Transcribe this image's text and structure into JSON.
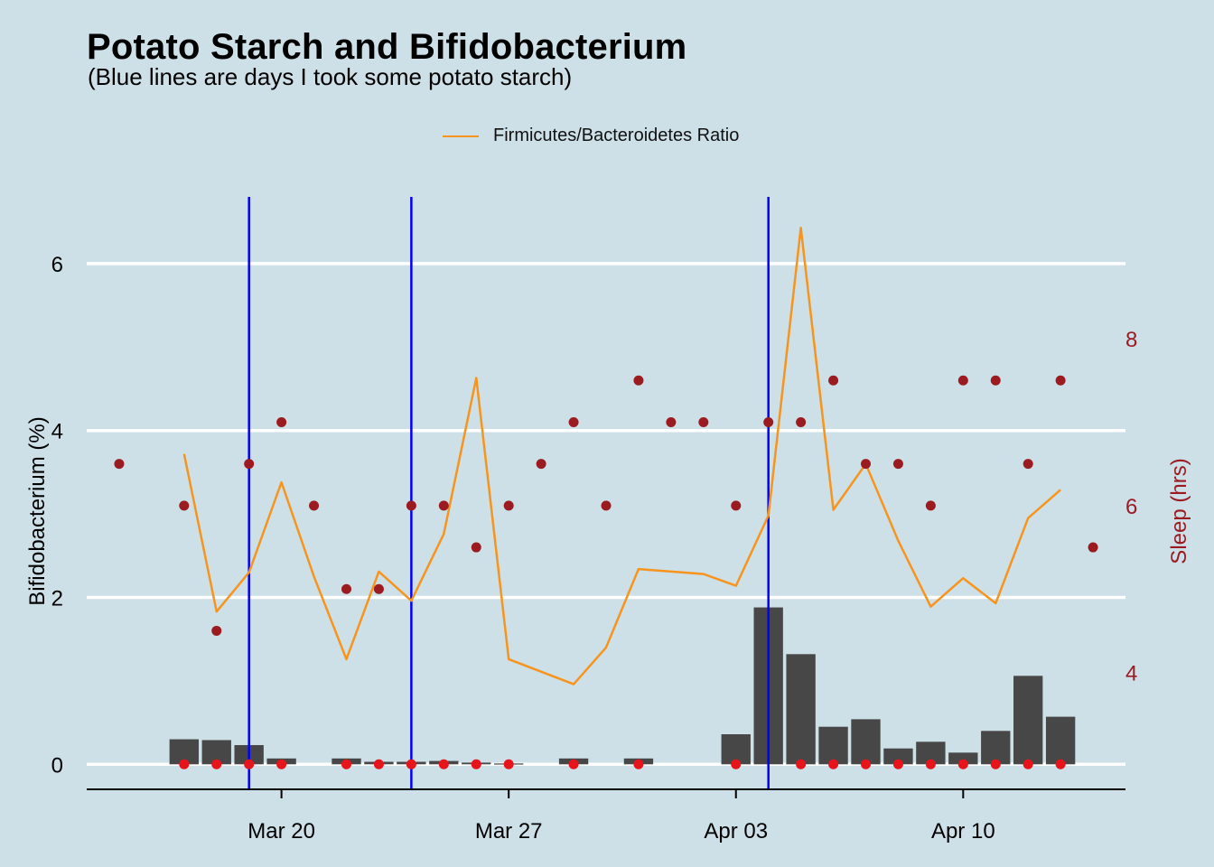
{
  "chart_data": {
    "type": "bar",
    "title": "Potato Starch and Bifidobacterium",
    "subtitle": "(Blue lines are days I took some potato starch)",
    "ylabel": "Bifidobacterium (%)",
    "ylabel_right": "Sleep (hrs)",
    "ylim": [
      -0.3,
      6.8
    ],
    "ylim_right": [
      2.6,
      9.7
    ],
    "y_ticks": [
      0,
      2,
      4,
      6
    ],
    "y_ticks_right": [
      4,
      6,
      8
    ],
    "x_ticks": [
      {
        "date": "2016-03-20",
        "label": "Mar 20"
      },
      {
        "date": "2016-03-27",
        "label": "Mar 27"
      },
      {
        "date": "2016-04-03",
        "label": "Apr 03"
      },
      {
        "date": "2016-04-10",
        "label": "Apr 10"
      }
    ],
    "xlim": [
      "2016-03-14",
      "2016-04-15"
    ],
    "grid": true,
    "legend_position": "top",
    "colors": {
      "bars": "#474747",
      "ratio_line": "#f7941d",
      "starch_lines": "#0000ff",
      "sleep_points": "#9b1b20",
      "zero_points": "#e8141c",
      "gridlines": "#ffffff",
      "right_axis": "#9b1b20"
    },
    "starch_days": [
      "2016-03-19",
      "2016-03-24",
      "2016-04-04"
    ],
    "series": [
      {
        "name": "Bifidobacterium (%)",
        "kind": "bar",
        "points": [
          {
            "date": "2016-03-17",
            "value": 0.3
          },
          {
            "date": "2016-03-18",
            "value": 0.29
          },
          {
            "date": "2016-03-19",
            "value": 0.23
          },
          {
            "date": "2016-03-20",
            "value": 0.07
          },
          {
            "date": "2016-03-22",
            "value": 0.07
          },
          {
            "date": "2016-03-23",
            "value": 0.03
          },
          {
            "date": "2016-03-24",
            "value": 0.03
          },
          {
            "date": "2016-03-25",
            "value": 0.04
          },
          {
            "date": "2016-03-26",
            "value": 0.02
          },
          {
            "date": "2016-03-27",
            "value": 0.01
          },
          {
            "date": "2016-03-29",
            "value": 0.07
          },
          {
            "date": "2016-03-31",
            "value": 0.07
          },
          {
            "date": "2016-04-03",
            "value": 0.36
          },
          {
            "date": "2016-04-04",
            "value": 1.88
          },
          {
            "date": "2016-04-05",
            "value": 1.32
          },
          {
            "date": "2016-04-06",
            "value": 0.45
          },
          {
            "date": "2016-04-07",
            "value": 0.54
          },
          {
            "date": "2016-04-08",
            "value": 0.19
          },
          {
            "date": "2016-04-09",
            "value": 0.27
          },
          {
            "date": "2016-04-10",
            "value": 0.14
          },
          {
            "date": "2016-04-11",
            "value": 0.4
          },
          {
            "date": "2016-04-12",
            "value": 1.06
          },
          {
            "date": "2016-04-13",
            "value": 0.57
          }
        ]
      },
      {
        "name": "Firmicutes/Bacteroidetes Ratio",
        "kind": "line",
        "axis": "left",
        "points": [
          {
            "date": "2016-03-17",
            "value": 3.72
          },
          {
            "date": "2016-03-18",
            "value": 1.83
          },
          {
            "date": "2016-03-19",
            "value": 2.3
          },
          {
            "date": "2016-03-20",
            "value": 3.38
          },
          {
            "date": "2016-03-21",
            "value": 2.25
          },
          {
            "date": "2016-03-22",
            "value": 1.26
          },
          {
            "date": "2016-03-23",
            "value": 2.31
          },
          {
            "date": "2016-03-24",
            "value": 1.96
          },
          {
            "date": "2016-03-25",
            "value": 2.76
          },
          {
            "date": "2016-03-26",
            "value": 4.63
          },
          {
            "date": "2016-03-27",
            "value": 1.26
          },
          {
            "date": "2016-03-29",
            "value": 0.96
          },
          {
            "date": "2016-03-30",
            "value": 1.4
          },
          {
            "date": "2016-03-31",
            "value": 2.34
          },
          {
            "date": "2016-04-02",
            "value": 2.28
          },
          {
            "date": "2016-04-03",
            "value": 2.14
          },
          {
            "date": "2016-04-04",
            "value": 2.98
          },
          {
            "date": "2016-04-05",
            "value": 6.43
          },
          {
            "date": "2016-04-06",
            "value": 3.05
          },
          {
            "date": "2016-04-07",
            "value": 3.6
          },
          {
            "date": "2016-04-08",
            "value": 2.68
          },
          {
            "date": "2016-04-09",
            "value": 1.89
          },
          {
            "date": "2016-04-10",
            "value": 2.23
          },
          {
            "date": "2016-04-11",
            "value": 1.93
          },
          {
            "date": "2016-04-12",
            "value": 2.95
          },
          {
            "date": "2016-04-13",
            "value": 3.29
          }
        ]
      },
      {
        "name": "Sleep (hrs)",
        "kind": "scatter",
        "axis": "right",
        "points": [
          {
            "date": "2016-03-15",
            "value": 6.5
          },
          {
            "date": "2016-03-17",
            "value": 6.0
          },
          {
            "date": "2016-03-18",
            "value": 4.5
          },
          {
            "date": "2016-03-19",
            "value": 6.5
          },
          {
            "date": "2016-03-20",
            "value": 7.0
          },
          {
            "date": "2016-03-21",
            "value": 6.0
          },
          {
            "date": "2016-03-22",
            "value": 5.0
          },
          {
            "date": "2016-03-23",
            "value": 5.0
          },
          {
            "date": "2016-03-24",
            "value": 6.0
          },
          {
            "date": "2016-03-25",
            "value": 6.0
          },
          {
            "date": "2016-03-26",
            "value": 5.5
          },
          {
            "date": "2016-03-27",
            "value": 6.0
          },
          {
            "date": "2016-03-28",
            "value": 6.5
          },
          {
            "date": "2016-03-29",
            "value": 7.0
          },
          {
            "date": "2016-03-30",
            "value": 6.0
          },
          {
            "date": "2016-03-31",
            "value": 7.5
          },
          {
            "date": "2016-04-01",
            "value": 7.0
          },
          {
            "date": "2016-04-02",
            "value": 7.0
          },
          {
            "date": "2016-04-03",
            "value": 6.0
          },
          {
            "date": "2016-04-04",
            "value": 7.0
          },
          {
            "date": "2016-04-05",
            "value": 7.0
          },
          {
            "date": "2016-04-06",
            "value": 7.5
          },
          {
            "date": "2016-04-07",
            "value": 6.5
          },
          {
            "date": "2016-04-08",
            "value": 6.5
          },
          {
            "date": "2016-04-09",
            "value": 6.0
          },
          {
            "date": "2016-04-10",
            "value": 7.5
          },
          {
            "date": "2016-04-11",
            "value": 7.5
          },
          {
            "date": "2016-04-12",
            "value": 6.5
          },
          {
            "date": "2016-04-13",
            "value": 7.5
          },
          {
            "date": "2016-04-14",
            "value": 5.5
          }
        ]
      }
    ],
    "baseline_marker_dates": [
      "2016-03-17",
      "2016-03-18",
      "2016-03-19",
      "2016-03-20",
      "2016-03-22",
      "2016-03-23",
      "2016-03-24",
      "2016-03-25",
      "2016-03-26",
      "2016-03-27",
      "2016-03-29",
      "2016-03-31",
      "2016-04-03",
      "2016-04-05",
      "2016-04-06",
      "2016-04-07",
      "2016-04-08",
      "2016-04-09",
      "2016-04-10",
      "2016-04-11",
      "2016-04-12",
      "2016-04-13"
    ],
    "legend": [
      "Firmicutes/Bacteroidetes Ratio"
    ]
  }
}
